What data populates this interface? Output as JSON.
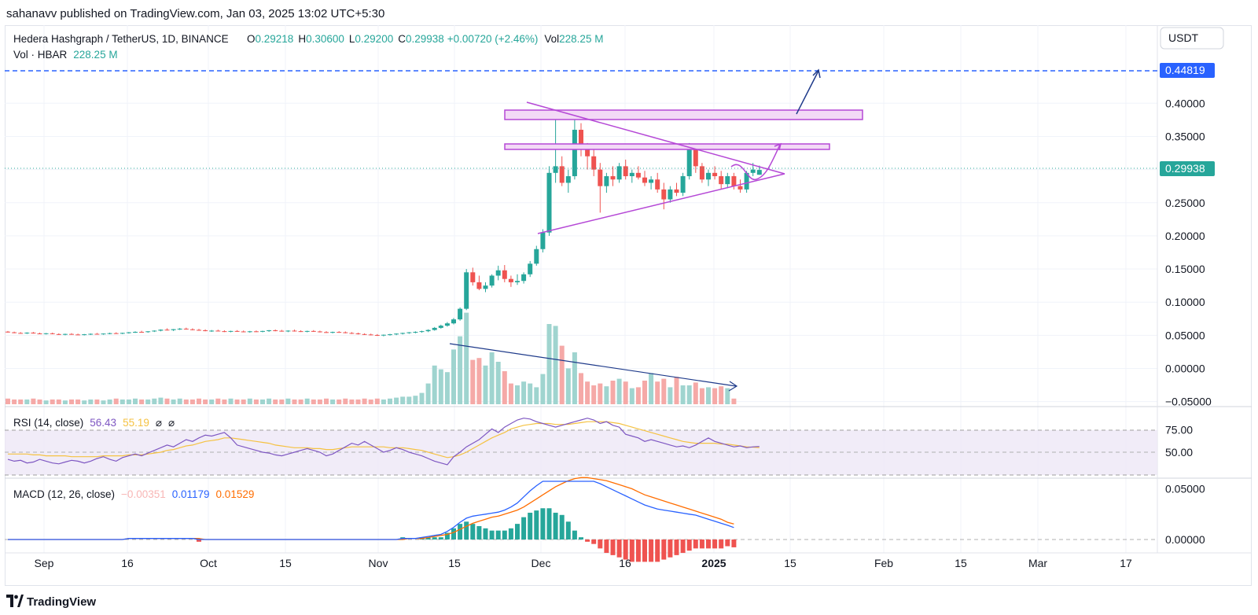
{
  "publisher": "sahanavv published on TradingView.com, Jan 03, 2025 13:02 UTC+5:30",
  "brand": "TradingView",
  "header": {
    "symbol": "Hedera Hashgraph / TetherUS, 1D, BINANCE",
    "o_label": "O",
    "o_value": "0.29218",
    "h_label": "H",
    "h_value": "0.30600",
    "l_label": "L",
    "l_value": "0.29200",
    "c_label": "C",
    "c_value": "0.29938",
    "change": "+0.00720 (+2.46%)",
    "vol_label": "Vol",
    "vol_value": "228.25 M",
    "vol_series_label": "Vol · HBAR",
    "vol_series_value": "228.25 M"
  },
  "currency": "USDT",
  "price_axis": {
    "ticks": [
      "0.40000",
      "0.35000",
      "0.30000",
      "0.25000",
      "0.20000",
      "0.15000",
      "0.10000",
      "0.05000",
      "0.00000",
      "−0.05000"
    ],
    "current_price": "0.29938",
    "target_price": "0.44819"
  },
  "rsi": {
    "label": "RSI (14, close)",
    "value": "56.43",
    "ma_value": "55.19",
    "icon_a": "⌀",
    "icon_b": "⌀",
    "ticks": [
      "75.00",
      "50.00"
    ]
  },
  "macd": {
    "label": "MACD (12, 26, close)",
    "hist_value": "−0.00351",
    "macd_value": "0.01179",
    "signal_value": "0.01529",
    "ticks": [
      "0.05000",
      "0.00000"
    ]
  },
  "time_axis": [
    "Sep",
    "16",
    "Oct",
    "15",
    "Nov",
    "15",
    "Dec",
    "16",
    "2025",
    "15",
    "Feb",
    "15",
    "Mar",
    "17"
  ],
  "colors": {
    "up": "#26a69a",
    "down": "#ef5350",
    "pattern": "#b548d6",
    "arrow": "#1e3a8a",
    "rsi": "#7e57c2",
    "rsi_ma": "#f5c242",
    "macd": "#2962ff",
    "signal": "#ff6d00",
    "target_line": "#2962ff",
    "current_line": "#26a69a"
  },
  "chart_data": {
    "type": "candlestick",
    "symbol": "HBARUSDT",
    "interval": "1D",
    "ylim": [
      -0.05,
      0.45
    ],
    "current_price": 0.29938,
    "target_price": 0.44819,
    "candles": [
      [
        0.0555,
        0.0565,
        0.054,
        0.0545
      ],
      [
        0.0545,
        0.0555,
        0.053,
        0.0535
      ],
      [
        0.0535,
        0.0548,
        0.0525,
        0.053
      ],
      [
        0.053,
        0.0545,
        0.052,
        0.054
      ],
      [
        0.054,
        0.055,
        0.0525,
        0.0528
      ],
      [
        0.0528,
        0.054,
        0.0518,
        0.0522
      ],
      [
        0.0522,
        0.0535,
        0.0512,
        0.053
      ],
      [
        0.053,
        0.054,
        0.0515,
        0.0518
      ],
      [
        0.0518,
        0.053,
        0.0505,
        0.051
      ],
      [
        0.051,
        0.0525,
        0.05,
        0.052
      ],
      [
        0.052,
        0.0532,
        0.0508,
        0.0512
      ],
      [
        0.0512,
        0.0525,
        0.0502,
        0.0505
      ],
      [
        0.0505,
        0.052,
        0.0498,
        0.0515
      ],
      [
        0.0515,
        0.0528,
        0.0505,
        0.0522
      ],
      [
        0.0522,
        0.0535,
        0.0512,
        0.0518
      ],
      [
        0.0518,
        0.053,
        0.0508,
        0.0526
      ],
      [
        0.0526,
        0.054,
        0.0515,
        0.0532
      ],
      [
        0.0532,
        0.0545,
        0.052,
        0.0528
      ],
      [
        0.0528,
        0.054,
        0.0518,
        0.0536
      ],
      [
        0.0536,
        0.055,
        0.0525,
        0.0545
      ],
      [
        0.0545,
        0.056,
        0.0535,
        0.0552
      ],
      [
        0.0552,
        0.0568,
        0.054,
        0.0548
      ],
      [
        0.0548,
        0.0562,
        0.0538,
        0.056
      ],
      [
        0.056,
        0.0575,
        0.055,
        0.057
      ],
      [
        0.057,
        0.059,
        0.056,
        0.0585
      ],
      [
        0.0585,
        0.0605,
        0.0572,
        0.0578
      ],
      [
        0.0578,
        0.0595,
        0.0565,
        0.0592
      ],
      [
        0.0592,
        0.061,
        0.058,
        0.06
      ],
      [
        0.06,
        0.0615,
        0.0585,
        0.059
      ],
      [
        0.059,
        0.0605,
        0.0575,
        0.0582
      ],
      [
        0.0582,
        0.0598,
        0.0568,
        0.0575
      ],
      [
        0.0575,
        0.059,
        0.056,
        0.0565
      ],
      [
        0.0565,
        0.058,
        0.0552,
        0.057
      ],
      [
        0.057,
        0.0585,
        0.0558,
        0.0562
      ],
      [
        0.0562,
        0.0575,
        0.0548,
        0.0555
      ],
      [
        0.0555,
        0.057,
        0.0545,
        0.0565
      ],
      [
        0.0565,
        0.0578,
        0.0552,
        0.0558
      ],
      [
        0.0558,
        0.0572,
        0.0545,
        0.0552
      ],
      [
        0.0552,
        0.0566,
        0.054,
        0.056
      ],
      [
        0.056,
        0.0572,
        0.0548,
        0.0555
      ],
      [
        0.0555,
        0.057,
        0.0545,
        0.0565
      ],
      [
        0.0565,
        0.058,
        0.0552,
        0.0575
      ],
      [
        0.0575,
        0.0588,
        0.056,
        0.0568
      ],
      [
        0.0568,
        0.0582,
        0.0555,
        0.056
      ],
      [
        0.056,
        0.0575,
        0.0548,
        0.057
      ],
      [
        0.057,
        0.0585,
        0.0556,
        0.0562
      ],
      [
        0.0562,
        0.0576,
        0.055,
        0.0556
      ],
      [
        0.0556,
        0.057,
        0.0545,
        0.0565
      ],
      [
        0.0565,
        0.0578,
        0.0552,
        0.0558
      ],
      [
        0.0558,
        0.057,
        0.0542,
        0.0548
      ],
      [
        0.0548,
        0.0562,
        0.0536,
        0.0542
      ],
      [
        0.0542,
        0.0556,
        0.053,
        0.055
      ],
      [
        0.055,
        0.0562,
        0.0538,
        0.0545
      ],
      [
        0.0545,
        0.0558,
        0.053,
        0.0535
      ],
      [
        0.0535,
        0.0548,
        0.052,
        0.0528
      ],
      [
        0.0528,
        0.054,
        0.0512,
        0.0518
      ],
      [
        0.0518,
        0.053,
        0.0505,
        0.0512
      ],
      [
        0.0512,
        0.0525,
        0.0498,
        0.0505
      ],
      [
        0.0505,
        0.0518,
        0.049,
        0.0498
      ],
      [
        0.0498,
        0.0512,
        0.0485,
        0.0508
      ],
      [
        0.0508,
        0.0522,
        0.0495,
        0.0515
      ],
      [
        0.0515,
        0.053,
        0.0502,
        0.0525
      ],
      [
        0.0525,
        0.054,
        0.0512,
        0.0535
      ],
      [
        0.0535,
        0.055,
        0.0522,
        0.0545
      ],
      [
        0.0545,
        0.056,
        0.053,
        0.0552
      ],
      [
        0.0552,
        0.057,
        0.054,
        0.0562
      ],
      [
        0.0562,
        0.059,
        0.0548,
        0.058
      ],
      [
        0.058,
        0.0625,
        0.057,
        0.0612
      ],
      [
        0.0612,
        0.066,
        0.06,
        0.0645
      ],
      [
        0.0645,
        0.07,
        0.063,
        0.068
      ],
      [
        0.068,
        0.076,
        0.0665,
        0.074
      ],
      [
        0.074,
        0.092,
        0.072,
        0.09
      ],
      [
        0.09,
        0.15,
        0.088,
        0.145
      ],
      [
        0.145,
        0.152,
        0.125,
        0.13
      ],
      [
        0.13,
        0.14,
        0.118,
        0.12
      ],
      [
        0.12,
        0.13,
        0.115,
        0.125
      ],
      [
        0.125,
        0.142,
        0.122,
        0.14
      ],
      [
        0.14,
        0.155,
        0.133,
        0.148
      ],
      [
        0.148,
        0.156,
        0.13,
        0.135
      ],
      [
        0.135,
        0.14,
        0.123,
        0.13
      ],
      [
        0.13,
        0.142,
        0.126,
        0.132
      ],
      [
        0.132,
        0.145,
        0.128,
        0.142
      ],
      [
        0.142,
        0.162,
        0.138,
        0.158
      ],
      [
        0.158,
        0.185,
        0.155,
        0.18
      ],
      [
        0.18,
        0.21,
        0.175,
        0.205
      ],
      [
        0.205,
        0.305,
        0.2,
        0.295
      ],
      [
        0.295,
        0.39,
        0.28,
        0.305
      ],
      [
        0.305,
        0.32,
        0.275,
        0.28
      ],
      [
        0.28,
        0.3,
        0.265,
        0.29
      ],
      [
        0.29,
        0.38,
        0.285,
        0.36
      ],
      [
        0.36,
        0.37,
        0.32,
        0.33
      ],
      [
        0.33,
        0.34,
        0.3,
        0.32
      ],
      [
        0.32,
        0.33,
        0.29,
        0.3
      ],
      [
        0.3,
        0.31,
        0.235,
        0.275
      ],
      [
        0.275,
        0.295,
        0.265,
        0.29
      ],
      [
        0.29,
        0.305,
        0.275,
        0.285
      ],
      [
        0.285,
        0.31,
        0.28,
        0.305
      ],
      [
        0.305,
        0.315,
        0.285,
        0.29
      ],
      [
        0.29,
        0.3,
        0.28,
        0.295
      ],
      [
        0.295,
        0.305,
        0.285,
        0.288
      ],
      [
        0.288,
        0.298,
        0.275,
        0.28
      ],
      [
        0.28,
        0.29,
        0.27,
        0.285
      ],
      [
        0.285,
        0.295,
        0.265,
        0.27
      ],
      [
        0.27,
        0.28,
        0.24,
        0.255
      ],
      [
        0.255,
        0.275,
        0.25,
        0.27
      ],
      [
        0.27,
        0.28,
        0.26,
        0.265
      ],
      [
        0.265,
        0.295,
        0.26,
        0.29
      ],
      [
        0.29,
        0.34,
        0.285,
        0.33
      ],
      [
        0.33,
        0.335,
        0.295,
        0.305
      ],
      [
        0.305,
        0.31,
        0.28,
        0.285
      ],
      [
        0.285,
        0.3,
        0.275,
        0.295
      ],
      [
        0.295,
        0.305,
        0.285,
        0.29
      ],
      [
        0.29,
        0.298,
        0.27,
        0.278
      ],
      [
        0.278,
        0.295,
        0.272,
        0.29
      ],
      [
        0.29,
        0.295,
        0.27,
        0.275
      ],
      [
        0.275,
        0.285,
        0.265,
        0.27
      ],
      [
        0.27,
        0.298,
        0.265,
        0.295
      ],
      [
        0.295,
        0.31,
        0.29,
        0.3
      ],
      [
        0.2922,
        0.306,
        0.292,
        0.2994
      ]
    ],
    "volume": [
      6,
      5,
      5,
      5,
      6,
      5,
      4,
      5,
      5,
      4,
      5,
      5,
      4,
      5,
      5,
      4,
      5,
      6,
      5,
      5,
      6,
      5,
      5,
      6,
      7,
      6,
      5,
      6,
      5,
      5,
      6,
      5,
      5,
      6,
      5,
      6,
      5,
      5,
      6,
      5,
      5,
      6,
      5,
      5,
      6,
      5,
      5,
      6,
      5,
      5,
      6,
      5,
      5,
      6,
      5,
      5,
      6,
      5,
      6,
      5,
      6,
      7,
      8,
      8,
      9,
      12,
      22,
      41,
      37,
      34,
      58,
      72,
      97,
      47,
      49,
      41,
      55,
      45,
      35,
      22,
      20,
      24,
      22,
      18,
      32,
      85,
      83,
      62,
      38,
      55,
      33,
      24,
      20,
      22,
      19,
      25,
      27,
      24,
      17,
      18,
      25,
      33,
      24,
      27,
      18,
      29,
      20,
      20,
      23,
      17,
      18,
      17,
      19,
      17,
      6
    ],
    "volume_trendline": "declining",
    "pattern": "symmetrical triangle",
    "pattern_upper_line": [
      [
        64,
        0.39
      ],
      [
        116,
        0.29
      ]
    ],
    "pattern_lower_line": [
      [
        84,
        0.2
      ],
      [
        116,
        0.29
      ]
    ],
    "resistance_zones": [
      [
        0.37,
        0.385
      ],
      [
        0.333,
        0.34
      ]
    ],
    "rsi_values": [
      42,
      40,
      41,
      38,
      39,
      42,
      40,
      38,
      37,
      39,
      41,
      40,
      38,
      40,
      43,
      45,
      42,
      40,
      44,
      46,
      48,
      46,
      49,
      52,
      55,
      58,
      56,
      60,
      64,
      62,
      66,
      69,
      68,
      70,
      72,
      66,
      58,
      56,
      54,
      52,
      50,
      49,
      47,
      46,
      48,
      50,
      52,
      54,
      52,
      50,
      46,
      48,
      52,
      56,
      60,
      58,
      62,
      58,
      54,
      50,
      52,
      55,
      53,
      50,
      48,
      46,
      43,
      40,
      38,
      36,
      45,
      50,
      56,
      60,
      64,
      70,
      76,
      72,
      78,
      82,
      86,
      88,
      87,
      84,
      82,
      80,
      78,
      80,
      82,
      84,
      86,
      88,
      86,
      82,
      84,
      80,
      78,
      70,
      68,
      66,
      62,
      64,
      62,
      60,
      58,
      56,
      57,
      55,
      58,
      62,
      66,
      62,
      60,
      58,
      56,
      57,
      55,
      56,
      56.43
    ],
    "rsi_ma_values": [
      48,
      48,
      48,
      48,
      47,
      47,
      46,
      46,
      46,
      46,
      45,
      45,
      45,
      45,
      45,
      46,
      46,
      46,
      46,
      47,
      47,
      47,
      48,
      49,
      50,
      52,
      53,
      55,
      57,
      58,
      60,
      62,
      63,
      64,
      66,
      66,
      65,
      64,
      63,
      62,
      61,
      60,
      58,
      57,
      56,
      55,
      55,
      55,
      54,
      54,
      53,
      53,
      54,
      55,
      56,
      56,
      56,
      56,
      56,
      56,
      55,
      55,
      55,
      54,
      53,
      52,
      50,
      48,
      46,
      44,
      45,
      47,
      50,
      54,
      58,
      62,
      66,
      69,
      72,
      76,
      78,
      80,
      81,
      82,
      82,
      82,
      81,
      81,
      81,
      82,
      83,
      84,
      84,
      84,
      84,
      83,
      82,
      80,
      78,
      76,
      74,
      72,
      70,
      68,
      66,
      64,
      62,
      61,
      60,
      60,
      60,
      60,
      59,
      59,
      58,
      57,
      56,
      55.6,
      55.19
    ],
    "macd_values": [
      0,
      0,
      0,
      0,
      0,
      0,
      0,
      0,
      0,
      0,
      0,
      0,
      0,
      0,
      0,
      0,
      0,
      0,
      0,
      0.001,
      0.001,
      0.001,
      0.001,
      0.001,
      0.001,
      0.001,
      0.001,
      0.001,
      0.001,
      0.001,
      0,
      0,
      0,
      0,
      0,
      0,
      0,
      0,
      0,
      0,
      0,
      0,
      0,
      0,
      0,
      0,
      0,
      0,
      0,
      0,
      0,
      0,
      0,
      0,
      0,
      0,
      0,
      0,
      0,
      0,
      0,
      0,
      0.001,
      0.001,
      0.001,
      0.002,
      0.003,
      0.004,
      0.005,
      0.008,
      0.012,
      0.017,
      0.021,
      0.023,
      0.024,
      0.025,
      0.026,
      0.027,
      0.029,
      0.032,
      0.036,
      0.042,
      0.048,
      0.053,
      0.058,
      0.062,
      0.064,
      0.066,
      0.066,
      0.064,
      0.062,
      0.06,
      0.058,
      0.055,
      0.052,
      0.049,
      0.046,
      0.043,
      0.04,
      0.037,
      0.034,
      0.032,
      0.03,
      0.029,
      0.028,
      0.027,
      0.026,
      0.025,
      0.024,
      0.022,
      0.02,
      0.018,
      0.016,
      0.014,
      0.01179
    ],
    "macd_signal_values": [
      0,
      0,
      0,
      0,
      0,
      0,
      0,
      0,
      0,
      0,
      0,
      0,
      0,
      0,
      0,
      0,
      0,
      0,
      0,
      0.001,
      0.001,
      0.001,
      0.001,
      0.001,
      0.001,
      0.001,
      0.001,
      0.001,
      0.001,
      0.001,
      0.001,
      0,
      0,
      0,
      0,
      0,
      0,
      0,
      0,
      0,
      0,
      0,
      0,
      0,
      0,
      0,
      0,
      0,
      0,
      0,
      0,
      0,
      0,
      0,
      0,
      0,
      0,
      0,
      0,
      0,
      0,
      0,
      0,
      0.001,
      0.001,
      0.001,
      0.002,
      0.003,
      0.004,
      0.005,
      0.007,
      0.01,
      0.013,
      0.016,
      0.018,
      0.02,
      0.022,
      0.023,
      0.025,
      0.027,
      0.029,
      0.032,
      0.036,
      0.04,
      0.044,
      0.048,
      0.052,
      0.055,
      0.058,
      0.06,
      0.061,
      0.061,
      0.06,
      0.059,
      0.058,
      0.056,
      0.054,
      0.052,
      0.05,
      0.047,
      0.044,
      0.042,
      0.04,
      0.038,
      0.036,
      0.034,
      0.032,
      0.03,
      0.028,
      0.026,
      0.024,
      0.022,
      0.02,
      0.017,
      0.01529
    ]
  }
}
